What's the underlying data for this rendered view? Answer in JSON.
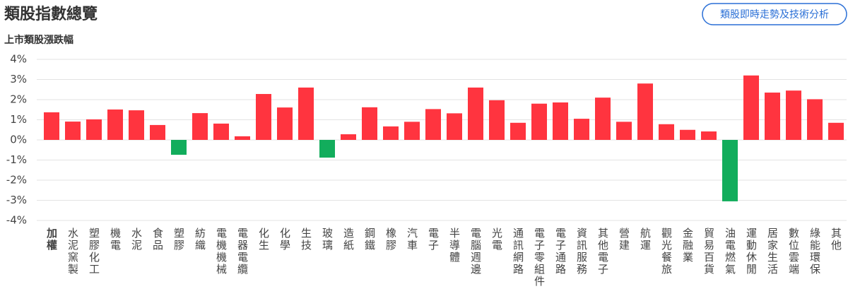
{
  "header": {
    "title": "類股指數總覽",
    "button": "類股即時走勢及技術分析"
  },
  "chart_data": {
    "type": "bar",
    "subtitle": "上市類股漲跌幅",
    "categories": [
      "加權",
      "水泥窯製",
      "塑膠化工",
      "機電",
      "水泥",
      "食品",
      "塑膠",
      "紡織",
      "電機機械",
      "電器電纜",
      "化生",
      "化學",
      "生技",
      "玻璃",
      "造紙",
      "鋼鐵",
      "橡膠",
      "汽車",
      "電子",
      "半導體",
      "電腦週邊",
      "光電",
      "通訊網路",
      "電子零組件",
      "電子通路",
      "資訊服務",
      "其他電子",
      "營建",
      "航運",
      "觀光餐旅",
      "金融業",
      "貿易百貨",
      "油電燃氣",
      "運動休閒",
      "居家生活",
      "數位雲端",
      "綠能環保",
      "其他"
    ],
    "values": [
      1.37,
      0.91,
      1.02,
      1.51,
      1.47,
      0.74,
      -0.74,
      1.33,
      0.81,
      0.18,
      2.28,
      1.61,
      2.6,
      -0.88,
      0.28,
      1.62,
      0.67,
      0.9,
      1.53,
      1.32,
      2.6,
      1.97,
      0.85,
      1.8,
      1.86,
      1.05,
      2.1,
      0.9,
      2.8,
      0.78,
      0.5,
      0.42,
      -3.05,
      3.2,
      2.35,
      2.45,
      2.02,
      0.85
    ],
    "up_color": "#ff343f",
    "down_color": "#12ad5c",
    "ylim": [
      -4,
      4
    ],
    "yticks": [
      {
        "value": -4,
        "label": "-4%"
      },
      {
        "value": -3,
        "label": "-3%"
      },
      {
        "value": -2,
        "label": "-2%"
      },
      {
        "value": -1,
        "label": "-1%"
      },
      {
        "value": 0,
        "label": "0%"
      },
      {
        "value": 1,
        "label": "1%"
      },
      {
        "value": 2,
        "label": "2%"
      },
      {
        "value": 3,
        "label": "3%"
      },
      {
        "value": 4,
        "label": "4%"
      }
    ],
    "grid": true
  }
}
